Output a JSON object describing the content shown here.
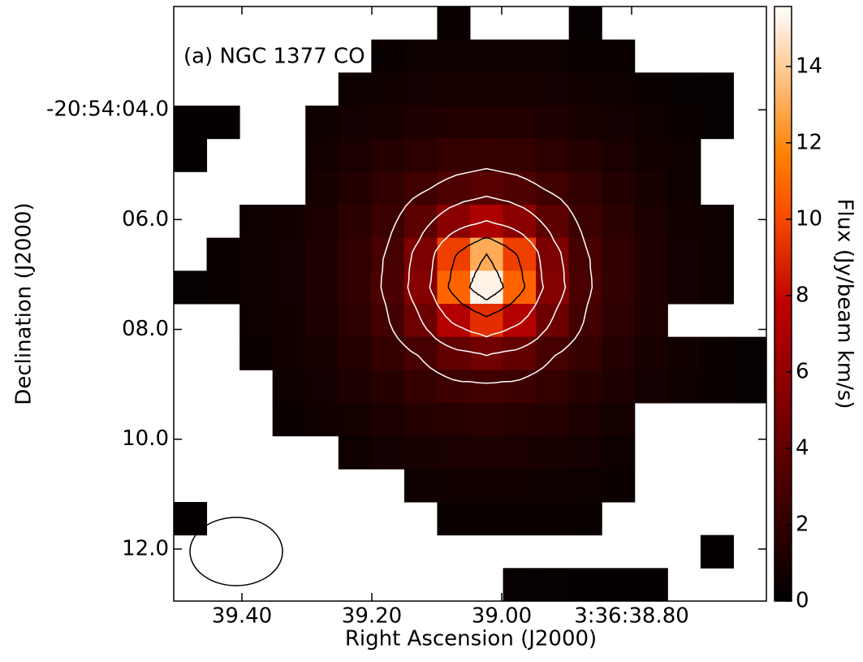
{
  "chart_data": {
    "type": "heatmap",
    "title": "(a) NGC 1377 CO 1-0",
    "x_label": "Right Ascension (J2000)",
    "y_label": "Declination (J2000)",
    "colorbar_label": "Flux (Jy/beam km/s)",
    "xlim": [
      39.505,
      38.5925
    ],
    "xticks": [
      {
        "value": 39.4,
        "label": "39.40"
      },
      {
        "value": 39.2,
        "label": "39.20"
      },
      {
        "value": 39.0,
        "label": "39.00"
      },
      {
        "value": 38.8,
        "label": "3:36:38.80"
      }
    ],
    "ylim": [
      12.948,
      2.119
    ],
    "yticks": [
      {
        "value": 4,
        "label": "-20:54:04.0"
      },
      {
        "value": 6,
        "label": "06.0"
      },
      {
        "value": 8,
        "label": "08.0"
      },
      {
        "value": 10,
        "label": "10.0"
      },
      {
        "value": 12,
        "label": "12.0"
      }
    ],
    "clim": [
      0,
      15.57
    ],
    "cticks": [
      0,
      2,
      4,
      6,
      8,
      10,
      12,
      14
    ],
    "colormap": "gist_heat",
    "z": [
      [
        null,
        null,
        null,
        null,
        null,
        null,
        null,
        null,
        0.4,
        null,
        null,
        null,
        0.3,
        null,
        null,
        null,
        null,
        null
      ],
      [
        null,
        null,
        null,
        null,
        null,
        null,
        0.45,
        0.5,
        0.55,
        0.6,
        0.55,
        0.5,
        0.45,
        0.4,
        null,
        null,
        null,
        null
      ],
      [
        null,
        null,
        null,
        null,
        null,
        0.5,
        0.65,
        0.8,
        0.9,
        0.9,
        0.9,
        0.8,
        0.65,
        0.5,
        0.4,
        0.3,
        0.25,
        null
      ],
      [
        0.2,
        0.2,
        null,
        null,
        0.55,
        0.8,
        1.0,
        1.2,
        1.4,
        1.4,
        1.4,
        1.2,
        1.0,
        0.8,
        0.55,
        0.4,
        0.3,
        null
      ],
      [
        0.2,
        null,
        null,
        null,
        0.75,
        1.1,
        1.5,
        1.8,
        2.1,
        2.2,
        2.1,
        1.8,
        1.5,
        1.1,
        0.75,
        0.5,
        null,
        null
      ],
      [
        null,
        null,
        null,
        null,
        0.95,
        1.4,
        2.0,
        2.6,
        3.2,
        3.6,
        3.2,
        2.6,
        2.0,
        1.4,
        0.95,
        0.6,
        null,
        null
      ],
      [
        null,
        null,
        0.5,
        0.75,
        1.1,
        1.7,
        2.4,
        3.8,
        5.6,
        7.0,
        5.6,
        3.8,
        2.4,
        1.7,
        1.1,
        0.75,
        0.5,
        null
      ],
      [
        null,
        0.35,
        0.5,
        0.8,
        1.3,
        2.0,
        2.9,
        5.1,
        9.7,
        13,
        9.7,
        5.1,
        2.9,
        2.0,
        1.3,
        0.8,
        0.5,
        null
      ],
      [
        0.25,
        0.35,
        0.5,
        0.8,
        1.3,
        2.0,
        3.0,
        5.4,
        10.8,
        15.2,
        10.8,
        5.4,
        3.0,
        2.0,
        1.3,
        0.8,
        0.5,
        null
      ],
      [
        null,
        null,
        0.5,
        0.75,
        1.2,
        1.8,
        2.7,
        4.4,
        7.3,
        9.2,
        7.3,
        4.4,
        2.7,
        1.8,
        1.2,
        null,
        null,
        null
      ],
      [
        null,
        null,
        0.45,
        0.7,
        1.0,
        1.5,
        2.2,
        2.9,
        4.0,
        4.6,
        4.0,
        2.9,
        2.2,
        1.5,
        1.0,
        0.7,
        0.45,
        0.3
      ],
      [
        null,
        null,
        null,
        0.55,
        0.8,
        1.2,
        1.6,
        2.1,
        2.5,
        2.6,
        2.5,
        2.1,
        1.6,
        1.2,
        0.8,
        0.55,
        0.4,
        0.3
      ],
      [
        null,
        null,
        null,
        0.45,
        0.65,
        0.85,
        1.1,
        1.45,
        1.65,
        1.75,
        1.65,
        1.45,
        1.1,
        0.85,
        null,
        null,
        null,
        null
      ],
      [
        null,
        null,
        null,
        null,
        null,
        0.6,
        0.8,
        0.95,
        1.05,
        1.1,
        1.05,
        0.95,
        0.8,
        0.6,
        null,
        null,
        null,
        null
      ],
      [
        null,
        null,
        null,
        null,
        null,
        null,
        null,
        0.6,
        0.7,
        0.7,
        0.7,
        0.6,
        0.5,
        0.45,
        null,
        null,
        null,
        null
      ],
      [
        0.2,
        null,
        null,
        null,
        null,
        null,
        null,
        null,
        0.45,
        0.45,
        0.45,
        0.4,
        0.35,
        null,
        null,
        null,
        null,
        null
      ],
      [
        null,
        null,
        null,
        null,
        null,
        null,
        null,
        null,
        null,
        null,
        null,
        null,
        null,
        null,
        null,
        null,
        0.2,
        null
      ],
      [
        null,
        null,
        null,
        null,
        null,
        null,
        null,
        null,
        null,
        null,
        0.25,
        0.25,
        0.2,
        0.2,
        0.2,
        null,
        null,
        null
      ]
    ],
    "contours": {
      "levels": [
        2.8,
        4.5,
        7,
        10,
        13
      ],
      "colors": [
        "#ffffff",
        "#ffffff",
        "#ffffff",
        "#000000",
        "#000000"
      ]
    }
  }
}
